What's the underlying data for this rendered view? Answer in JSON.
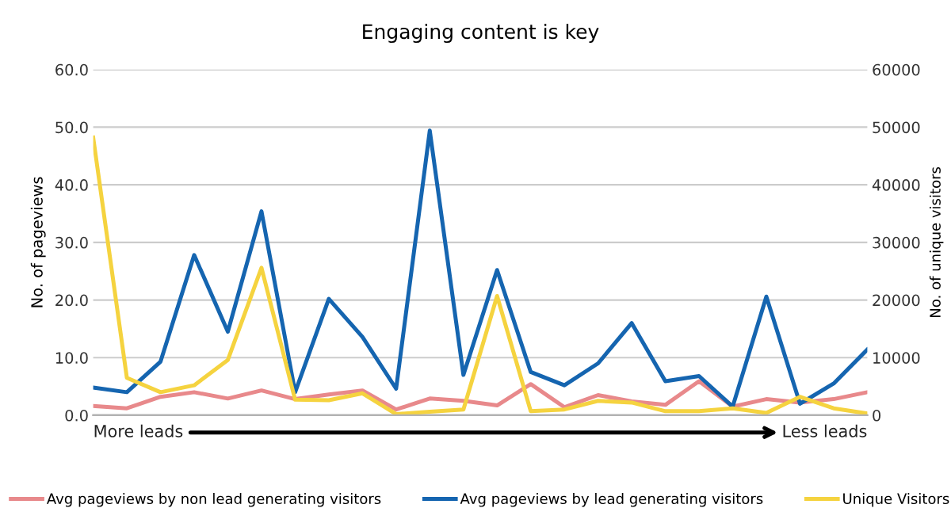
{
  "chart_data": {
    "type": "line",
    "title": "Engaging content is key",
    "ylabel": "No. of pageviews",
    "y2label": "No. of unique visitors",
    "categories": [
      null,
      null,
      null,
      null,
      null,
      null,
      null,
      null,
      null,
      null,
      null,
      null,
      null,
      null,
      null,
      null,
      null,
      null,
      null,
      null,
      null,
      null,
      null,
      null
    ],
    "series": [
      {
        "name": "Avg pageviews by non lead generating visitors",
        "color": "#e8898b",
        "values": [
          1.6,
          1.2,
          3.2,
          4.0,
          2.9,
          4.3,
          2.8,
          3.6,
          4.3,
          1.0,
          2.9,
          2.5,
          1.7,
          5.4,
          1.4,
          3.5,
          2.4,
          1.8,
          5.9,
          1.5,
          2.8,
          2.2,
          2.8,
          4.0
        ]
      },
      {
        "name": "Avg pageviews by lead generating visitors",
        "color": "#1565b0",
        "values": [
          4.8,
          4.0,
          9.3,
          27.8,
          14.5,
          35.4,
          4.0,
          20.2,
          13.6,
          4.6,
          49.4,
          7.0,
          25.2,
          7.5,
          5.2,
          9.0,
          16.0,
          5.9,
          6.8,
          1.5,
          20.6,
          2.0,
          5.5,
          11.4
        ]
      },
      {
        "name": "Unique Visitors",
        "color": "#f5d33f",
        "axis": "y2",
        "values": [
          48200,
          6500,
          4000,
          5200,
          9600,
          25600,
          2700,
          2600,
          3800,
          200,
          600,
          1000,
          20700,
          700,
          1000,
          2500,
          2200,
          700,
          700,
          1200,
          400,
          3200,
          1200,
          300
        ]
      }
    ],
    "ylim": [
      0,
      60
    ],
    "yticks": [
      {
        "value": 0,
        "label": "0.0"
      },
      {
        "value": 10,
        "label": "10.0"
      },
      {
        "value": 20,
        "label": "20.0"
      },
      {
        "value": 30,
        "label": "30.0"
      },
      {
        "value": 40,
        "label": "40.0"
      },
      {
        "value": 50,
        "label": "50.0"
      },
      {
        "value": 60,
        "label": "60.0"
      }
    ],
    "y2lim": [
      0,
      60000
    ],
    "y2ticks": [
      0,
      10000,
      20000,
      30000,
      40000,
      50000,
      60000
    ],
    "annotations": [
      "More leads",
      "Less leads"
    ],
    "grid": "y",
    "legend": "bottom",
    "marker": "none",
    "line_style": "solid"
  }
}
